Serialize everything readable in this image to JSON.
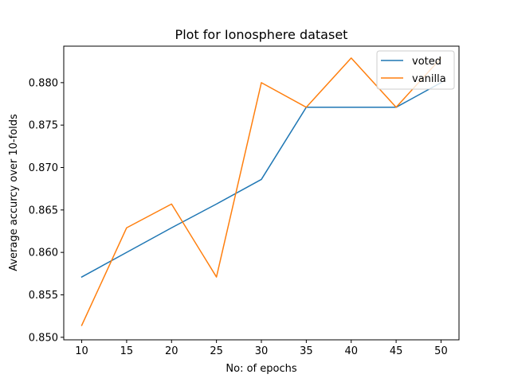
{
  "chart_data": {
    "type": "line",
    "title": "Plot for Ionosphere dataset",
    "xlabel": "No: of epochs",
    "ylabel": "Average accurcy over 10-folds",
    "x": [
      10,
      15,
      20,
      25,
      30,
      35,
      40,
      45,
      50
    ],
    "xticks": [
      "10",
      "15",
      "20",
      "25",
      "30",
      "35",
      "40",
      "45",
      "50"
    ],
    "yticks": [
      "0.850",
      "0.855",
      "0.860",
      "0.865",
      "0.870",
      "0.875",
      "0.880"
    ],
    "ylim": [
      0.8497,
      0.8843
    ],
    "xlim": [
      8,
      52
    ],
    "legend_position": "top-right",
    "series": [
      {
        "name": "voted",
        "color": "#1f77b4",
        "values": [
          0.8571,
          0.86,
          0.8629,
          0.8657,
          0.8686,
          0.8771,
          0.8771,
          0.8771,
          0.88
        ]
      },
      {
        "name": "vanilla",
        "color": "#ff7f0e",
        "values": [
          0.8514,
          0.8629,
          0.8657,
          0.8571,
          0.88,
          0.8771,
          0.8829,
          0.8771,
          0.8829
        ]
      }
    ]
  }
}
